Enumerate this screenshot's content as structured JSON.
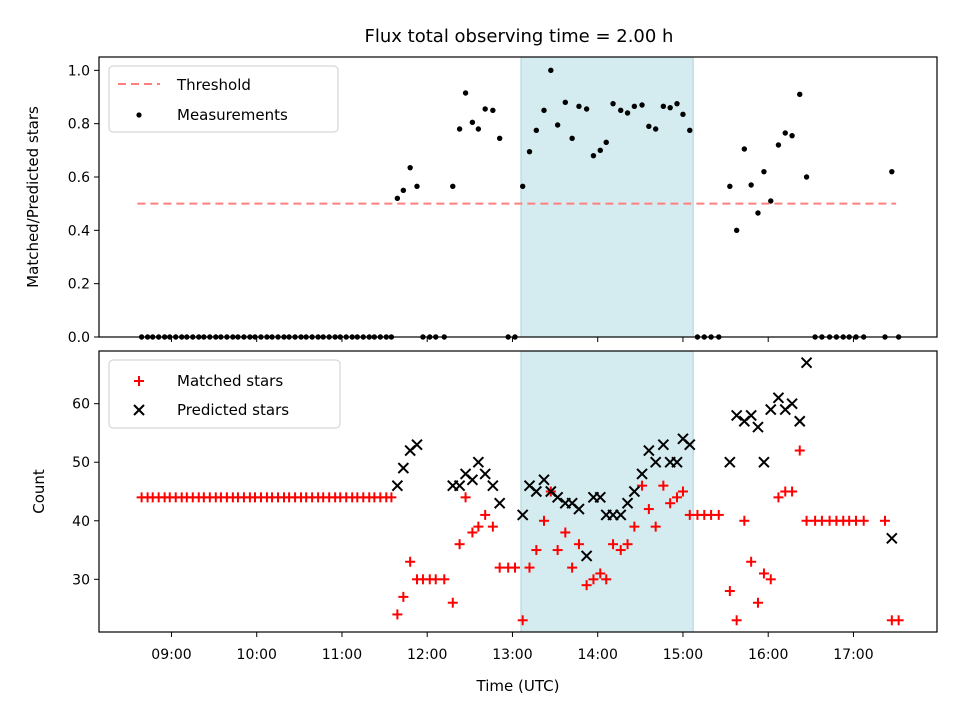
{
  "chart_data": {
    "type": "scatter",
    "title": "Flux total observing time = 2.00 h",
    "xlabel": "Time (UTC)",
    "x_unit": "hours UTC",
    "xlim": [
      8.15,
      17.98
    ],
    "xticks": [
      9,
      10,
      11,
      12,
      13,
      14,
      15,
      16,
      17
    ],
    "xtick_labels": [
      "09:00",
      "10:00",
      "11:00",
      "12:00",
      "13:00",
      "14:00",
      "15:00",
      "16:00",
      "17:00"
    ],
    "highlight_span": {
      "x": [
        13.1,
        15.12
      ],
      "color": "#d4ebf0"
    },
    "top": {
      "ylabel": "Matched/Predicted stars",
      "ylim": [
        0,
        1.05
      ],
      "yticks": [
        0.0,
        0.2,
        0.4,
        0.6,
        0.8,
        1.0
      ],
      "ytick_labels": [
        "0.0",
        "0.2",
        "0.4",
        "0.6",
        "0.8",
        "1.0"
      ],
      "legend": [
        "Threshold",
        "Measurements"
      ],
      "threshold": {
        "name": "Threshold",
        "y": 0.5,
        "x": [
          8.6,
          17.5
        ],
        "color": "#ff7f7f"
      },
      "measurements": {
        "name": "Measurements",
        "color": "#000000",
        "points": [
          [
            8.65,
            0
          ],
          [
            8.72,
            0
          ],
          [
            8.78,
            0
          ],
          [
            8.85,
            0
          ],
          [
            8.92,
            0
          ],
          [
            8.98,
            0
          ],
          [
            9.05,
            0
          ],
          [
            9.12,
            0
          ],
          [
            9.18,
            0
          ],
          [
            9.25,
            0
          ],
          [
            9.32,
            0
          ],
          [
            9.38,
            0
          ],
          [
            9.45,
            0
          ],
          [
            9.52,
            0
          ],
          [
            9.58,
            0
          ],
          [
            9.65,
            0
          ],
          [
            9.72,
            0
          ],
          [
            9.78,
            0
          ],
          [
            9.85,
            0
          ],
          [
            9.92,
            0
          ],
          [
            9.98,
            0
          ],
          [
            10.05,
            0
          ],
          [
            10.12,
            0
          ],
          [
            10.18,
            0
          ],
          [
            10.25,
            0
          ],
          [
            10.32,
            0
          ],
          [
            10.38,
            0
          ],
          [
            10.45,
            0
          ],
          [
            10.52,
            0
          ],
          [
            10.58,
            0
          ],
          [
            10.65,
            0
          ],
          [
            10.72,
            0
          ],
          [
            10.78,
            0
          ],
          [
            10.85,
            0
          ],
          [
            10.92,
            0
          ],
          [
            10.98,
            0
          ],
          [
            11.05,
            0
          ],
          [
            11.12,
            0
          ],
          [
            11.18,
            0
          ],
          [
            11.25,
            0
          ],
          [
            11.32,
            0
          ],
          [
            11.38,
            0
          ],
          [
            11.45,
            0
          ],
          [
            11.52,
            0
          ],
          [
            11.58,
            0
          ],
          [
            11.65,
            0.52
          ],
          [
            11.72,
            0.55
          ],
          [
            11.8,
            0.635
          ],
          [
            11.88,
            0.565
          ],
          [
            11.95,
            0
          ],
          [
            12.03,
            0
          ],
          [
            12.1,
            0
          ],
          [
            12.2,
            0
          ],
          [
            12.3,
            0.565
          ],
          [
            12.38,
            0.78
          ],
          [
            12.45,
            0.915
          ],
          [
            12.53,
            0.805
          ],
          [
            12.6,
            0.78
          ],
          [
            12.68,
            0.855
          ],
          [
            12.77,
            0.85
          ],
          [
            12.85,
            0.745
          ],
          [
            12.95,
            0
          ],
          [
            13.03,
            0
          ],
          [
            13.12,
            0.565
          ],
          [
            13.2,
            0.695
          ],
          [
            13.28,
            0.775
          ],
          [
            13.37,
            0.85
          ],
          [
            13.45,
            1.0
          ],
          [
            13.53,
            0.795
          ],
          [
            13.62,
            0.88
          ],
          [
            13.7,
            0.745
          ],
          [
            13.78,
            0.865
          ],
          [
            13.87,
            0.855
          ],
          [
            13.95,
            0.68
          ],
          [
            14.03,
            0.7
          ],
          [
            14.1,
            0.73
          ],
          [
            14.18,
            0.875
          ],
          [
            14.27,
            0.85
          ],
          [
            14.35,
            0.84
          ],
          [
            14.43,
            0.865
          ],
          [
            14.52,
            0.87
          ],
          [
            14.6,
            0.79
          ],
          [
            14.68,
            0.78
          ],
          [
            14.77,
            0.865
          ],
          [
            14.85,
            0.86
          ],
          [
            14.93,
            0.875
          ],
          [
            15.0,
            0.835
          ],
          [
            15.08,
            0.775
          ],
          [
            15.17,
            0
          ],
          [
            15.25,
            0
          ],
          [
            15.33,
            0
          ],
          [
            15.42,
            0
          ],
          [
            15.55,
            0.565
          ],
          [
            15.63,
            0.4
          ],
          [
            15.72,
            0.705
          ],
          [
            15.8,
            0.57
          ],
          [
            15.88,
            0.465
          ],
          [
            15.95,
            0.62
          ],
          [
            16.03,
            0.51
          ],
          [
            16.12,
            0.72
          ],
          [
            16.2,
            0.765
          ],
          [
            16.28,
            0.755
          ],
          [
            16.37,
            0.91
          ],
          [
            16.45,
            0.6
          ],
          [
            16.55,
            0
          ],
          [
            16.63,
            0
          ],
          [
            16.72,
            0
          ],
          [
            16.8,
            0
          ],
          [
            16.88,
            0
          ],
          [
            16.95,
            0
          ],
          [
            17.03,
            0
          ],
          [
            17.12,
            0
          ],
          [
            17.37,
            0
          ],
          [
            17.45,
            0.62
          ],
          [
            17.53,
            0
          ]
        ]
      }
    },
    "bottom": {
      "ylabel": "Count",
      "ylim": [
        21,
        69
      ],
      "yticks": [
        30,
        40,
        50,
        60
      ],
      "ytick_labels": [
        "30",
        "40",
        "50",
        "60"
      ],
      "legend": [
        "Matched stars",
        "Predicted stars"
      ],
      "matched": {
        "name": "Matched stars",
        "color": "#ff0000",
        "points": [
          [
            8.65,
            44
          ],
          [
            8.72,
            44
          ],
          [
            8.78,
            44
          ],
          [
            8.85,
            44
          ],
          [
            8.92,
            44
          ],
          [
            8.98,
            44
          ],
          [
            9.05,
            44
          ],
          [
            9.12,
            44
          ],
          [
            9.18,
            44
          ],
          [
            9.25,
            44
          ],
          [
            9.32,
            44
          ],
          [
            9.38,
            44
          ],
          [
            9.45,
            44
          ],
          [
            9.52,
            44
          ],
          [
            9.58,
            44
          ],
          [
            9.65,
            44
          ],
          [
            9.72,
            44
          ],
          [
            9.78,
            44
          ],
          [
            9.85,
            44
          ],
          [
            9.92,
            44
          ],
          [
            9.98,
            44
          ],
          [
            10.05,
            44
          ],
          [
            10.12,
            44
          ],
          [
            10.18,
            44
          ],
          [
            10.25,
            44
          ],
          [
            10.32,
            44
          ],
          [
            10.38,
            44
          ],
          [
            10.45,
            44
          ],
          [
            10.52,
            44
          ],
          [
            10.58,
            44
          ],
          [
            10.65,
            44
          ],
          [
            10.72,
            44
          ],
          [
            10.78,
            44
          ],
          [
            10.85,
            44
          ],
          [
            10.92,
            44
          ],
          [
            10.98,
            44
          ],
          [
            11.05,
            44
          ],
          [
            11.12,
            44
          ],
          [
            11.18,
            44
          ],
          [
            11.25,
            44
          ],
          [
            11.32,
            44
          ],
          [
            11.38,
            44
          ],
          [
            11.45,
            44
          ],
          [
            11.52,
            44
          ],
          [
            11.58,
            44
          ],
          [
            11.65,
            24
          ],
          [
            11.72,
            27
          ],
          [
            11.8,
            33
          ],
          [
            11.88,
            30
          ],
          [
            11.95,
            30
          ],
          [
            12.03,
            30
          ],
          [
            12.1,
            30
          ],
          [
            12.2,
            30
          ],
          [
            12.3,
            26
          ],
          [
            12.38,
            36
          ],
          [
            12.45,
            44
          ],
          [
            12.53,
            38
          ],
          [
            12.6,
            39
          ],
          [
            12.68,
            41
          ],
          [
            12.77,
            39
          ],
          [
            12.85,
            32
          ],
          [
            12.95,
            32
          ],
          [
            13.03,
            32
          ],
          [
            13.12,
            23
          ],
          [
            13.2,
            32
          ],
          [
            13.28,
            35
          ],
          [
            13.37,
            40
          ],
          [
            13.45,
            45
          ],
          [
            13.53,
            35
          ],
          [
            13.62,
            38
          ],
          [
            13.7,
            32
          ],
          [
            13.78,
            36
          ],
          [
            13.87,
            29
          ],
          [
            13.95,
            30
          ],
          [
            14.03,
            31
          ],
          [
            14.1,
            30
          ],
          [
            14.18,
            36
          ],
          [
            14.27,
            35
          ],
          [
            14.35,
            36
          ],
          [
            14.43,
            39
          ],
          [
            14.52,
            46
          ],
          [
            14.6,
            42
          ],
          [
            14.68,
            39
          ],
          [
            14.77,
            46
          ],
          [
            14.85,
            43
          ],
          [
            14.93,
            44
          ],
          [
            15.0,
            45
          ],
          [
            15.08,
            41
          ],
          [
            15.17,
            41
          ],
          [
            15.25,
            41
          ],
          [
            15.33,
            41
          ],
          [
            15.42,
            41
          ],
          [
            15.55,
            28
          ],
          [
            15.63,
            23
          ],
          [
            15.72,
            40
          ],
          [
            15.8,
            33
          ],
          [
            15.88,
            26
          ],
          [
            15.95,
            31
          ],
          [
            16.03,
            30
          ],
          [
            16.12,
            44
          ],
          [
            16.2,
            45
          ],
          [
            16.28,
            45
          ],
          [
            16.37,
            52
          ],
          [
            16.45,
            40
          ],
          [
            16.55,
            40
          ],
          [
            16.63,
            40
          ],
          [
            16.72,
            40
          ],
          [
            16.8,
            40
          ],
          [
            16.88,
            40
          ],
          [
            16.95,
            40
          ],
          [
            17.03,
            40
          ],
          [
            17.12,
            40
          ],
          [
            17.37,
            40
          ],
          [
            17.45,
            23
          ],
          [
            17.53,
            23
          ]
        ]
      },
      "predicted": {
        "name": "Predicted stars",
        "color": "#000000",
        "points": [
          [
            11.65,
            46
          ],
          [
            11.72,
            49
          ],
          [
            11.8,
            52
          ],
          [
            11.88,
            53
          ],
          [
            12.3,
            46
          ],
          [
            12.38,
            46
          ],
          [
            12.45,
            48
          ],
          [
            12.53,
            47
          ],
          [
            12.6,
            50
          ],
          [
            12.68,
            48
          ],
          [
            12.77,
            46
          ],
          [
            12.85,
            43
          ],
          [
            13.12,
            41
          ],
          [
            13.2,
            46
          ],
          [
            13.28,
            45
          ],
          [
            13.37,
            47
          ],
          [
            13.45,
            45
          ],
          [
            13.53,
            44
          ],
          [
            13.62,
            43
          ],
          [
            13.7,
            43
          ],
          [
            13.78,
            42
          ],
          [
            13.87,
            34
          ],
          [
            13.95,
            44
          ],
          [
            14.03,
            44
          ],
          [
            14.1,
            41
          ],
          [
            14.18,
            41
          ],
          [
            14.27,
            41
          ],
          [
            14.35,
            43
          ],
          [
            14.43,
            45
          ],
          [
            14.52,
            48
          ],
          [
            14.6,
            52
          ],
          [
            14.68,
            50
          ],
          [
            14.77,
            53
          ],
          [
            14.85,
            50
          ],
          [
            14.93,
            50
          ],
          [
            15.0,
            54
          ],
          [
            15.08,
            53
          ],
          [
            15.55,
            50
          ],
          [
            15.63,
            58
          ],
          [
            15.72,
            57
          ],
          [
            15.8,
            58
          ],
          [
            15.88,
            56
          ],
          [
            15.95,
            50
          ],
          [
            16.03,
            59
          ],
          [
            16.12,
            61
          ],
          [
            16.2,
            59
          ],
          [
            16.28,
            60
          ],
          [
            16.37,
            57
          ],
          [
            16.45,
            67
          ],
          [
            17.45,
            37
          ]
        ]
      }
    }
  }
}
